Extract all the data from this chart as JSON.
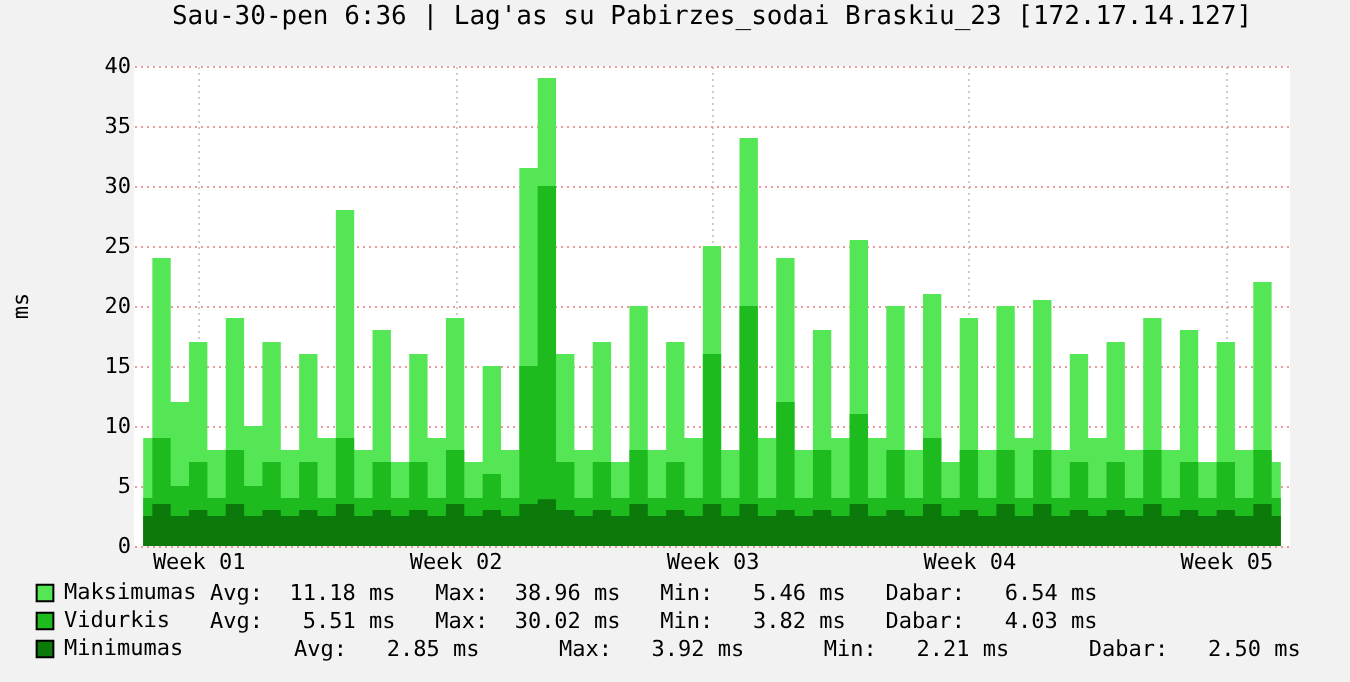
{
  "chart_data": {
    "type": "area",
    "title": "Sau-30-pen 6:36 | Lag'as su Pabirzes_sodai Braskiu_23 [172.17.14.127]",
    "ylabel": "ms",
    "categories": [
      null,
      null,
      null,
      "Week 01",
      null,
      null,
      null,
      null,
      null,
      null,
      null,
      null,
      null,
      null,
      null,
      null,
      null,
      "Week 02",
      null,
      null,
      null,
      null,
      null,
      null,
      null,
      null,
      null,
      null,
      null,
      null,
      null,
      "Week 03",
      null,
      null,
      null,
      null,
      null,
      null,
      null,
      null,
      null,
      null,
      null,
      null,
      null,
      "Week 04",
      null,
      null,
      null,
      null,
      null,
      null,
      null,
      null,
      null,
      null,
      null,
      null,
      null,
      "Week 05",
      null,
      null,
      null
    ],
    "series": [
      {
        "name": "Maksimumas",
        "color": "#55e655",
        "values": [
          9,
          24,
          12,
          17,
          8,
          19,
          10,
          17,
          8,
          16,
          9,
          28,
          8,
          18,
          7,
          16,
          9,
          19,
          7,
          15,
          8,
          31.5,
          39,
          16,
          8,
          17,
          7,
          20,
          8,
          17,
          9,
          25,
          8,
          34,
          9,
          24,
          8,
          18,
          9,
          25.5,
          9,
          20,
          8,
          21,
          7,
          19,
          8,
          20,
          9,
          20.5,
          8,
          16,
          9,
          17,
          8,
          19,
          8,
          18,
          7,
          17,
          8,
          22,
          7
        ]
      },
      {
        "name": "Vidurkis",
        "color": "#1ebb1e",
        "values": [
          4,
          9,
          5,
          7,
          4,
          8,
          5,
          7,
          4,
          7,
          4,
          9,
          4,
          7,
          4,
          7,
          4,
          8,
          4,
          6,
          4,
          15,
          30,
          7,
          4,
          7,
          4,
          8,
          4,
          7,
          4,
          16,
          4,
          20,
          4,
          12,
          4,
          8,
          4,
          11,
          4,
          8,
          4,
          9,
          4,
          8,
          4,
          8,
          4,
          8,
          4,
          7,
          4,
          7,
          4,
          8,
          4,
          7,
          4,
          7,
          4,
          8,
          4
        ]
      },
      {
        "name": "Minimumas",
        "color": "#0b7a0b",
        "values": [
          2.5,
          3.5,
          2.5,
          3,
          2.5,
          3.5,
          2.5,
          3,
          2.5,
          3,
          2.5,
          3.5,
          2.5,
          3,
          2.5,
          3,
          2.5,
          3.5,
          2.5,
          3,
          2.5,
          3.5,
          3.9,
          3,
          2.5,
          3,
          2.5,
          3.5,
          2.5,
          3,
          2.5,
          3.5,
          2.5,
          3.5,
          2.5,
          3,
          2.5,
          3,
          2.5,
          3.5,
          2.5,
          3,
          2.5,
          3.5,
          2.5,
          3,
          2.5,
          3.5,
          2.5,
          3.5,
          2.5,
          3,
          2.5,
          3,
          2.5,
          3.5,
          2.5,
          3,
          2.5,
          3,
          2.5,
          3.5,
          2.5
        ]
      }
    ],
    "ylim": [
      0,
      40
    ],
    "yticks": [
      0,
      5,
      10,
      15,
      20,
      25,
      30,
      35,
      40
    ],
    "grid": true,
    "legend": "bottom left",
    "annotations": [
      "Avg:  11.18 ms   Max:  38.96 ms   Min:   5.46 ms   Dabar:   6.54 ms",
      "Avg:   5.51 ms   Max:  30.02 ms   Min:   3.82 ms   Dabar:   4.03 ms",
      "Avg:   2.85 ms      Max:   3.92 ms      Min:   2.21 ms      Dabar:   2.50 ms"
    ]
  }
}
